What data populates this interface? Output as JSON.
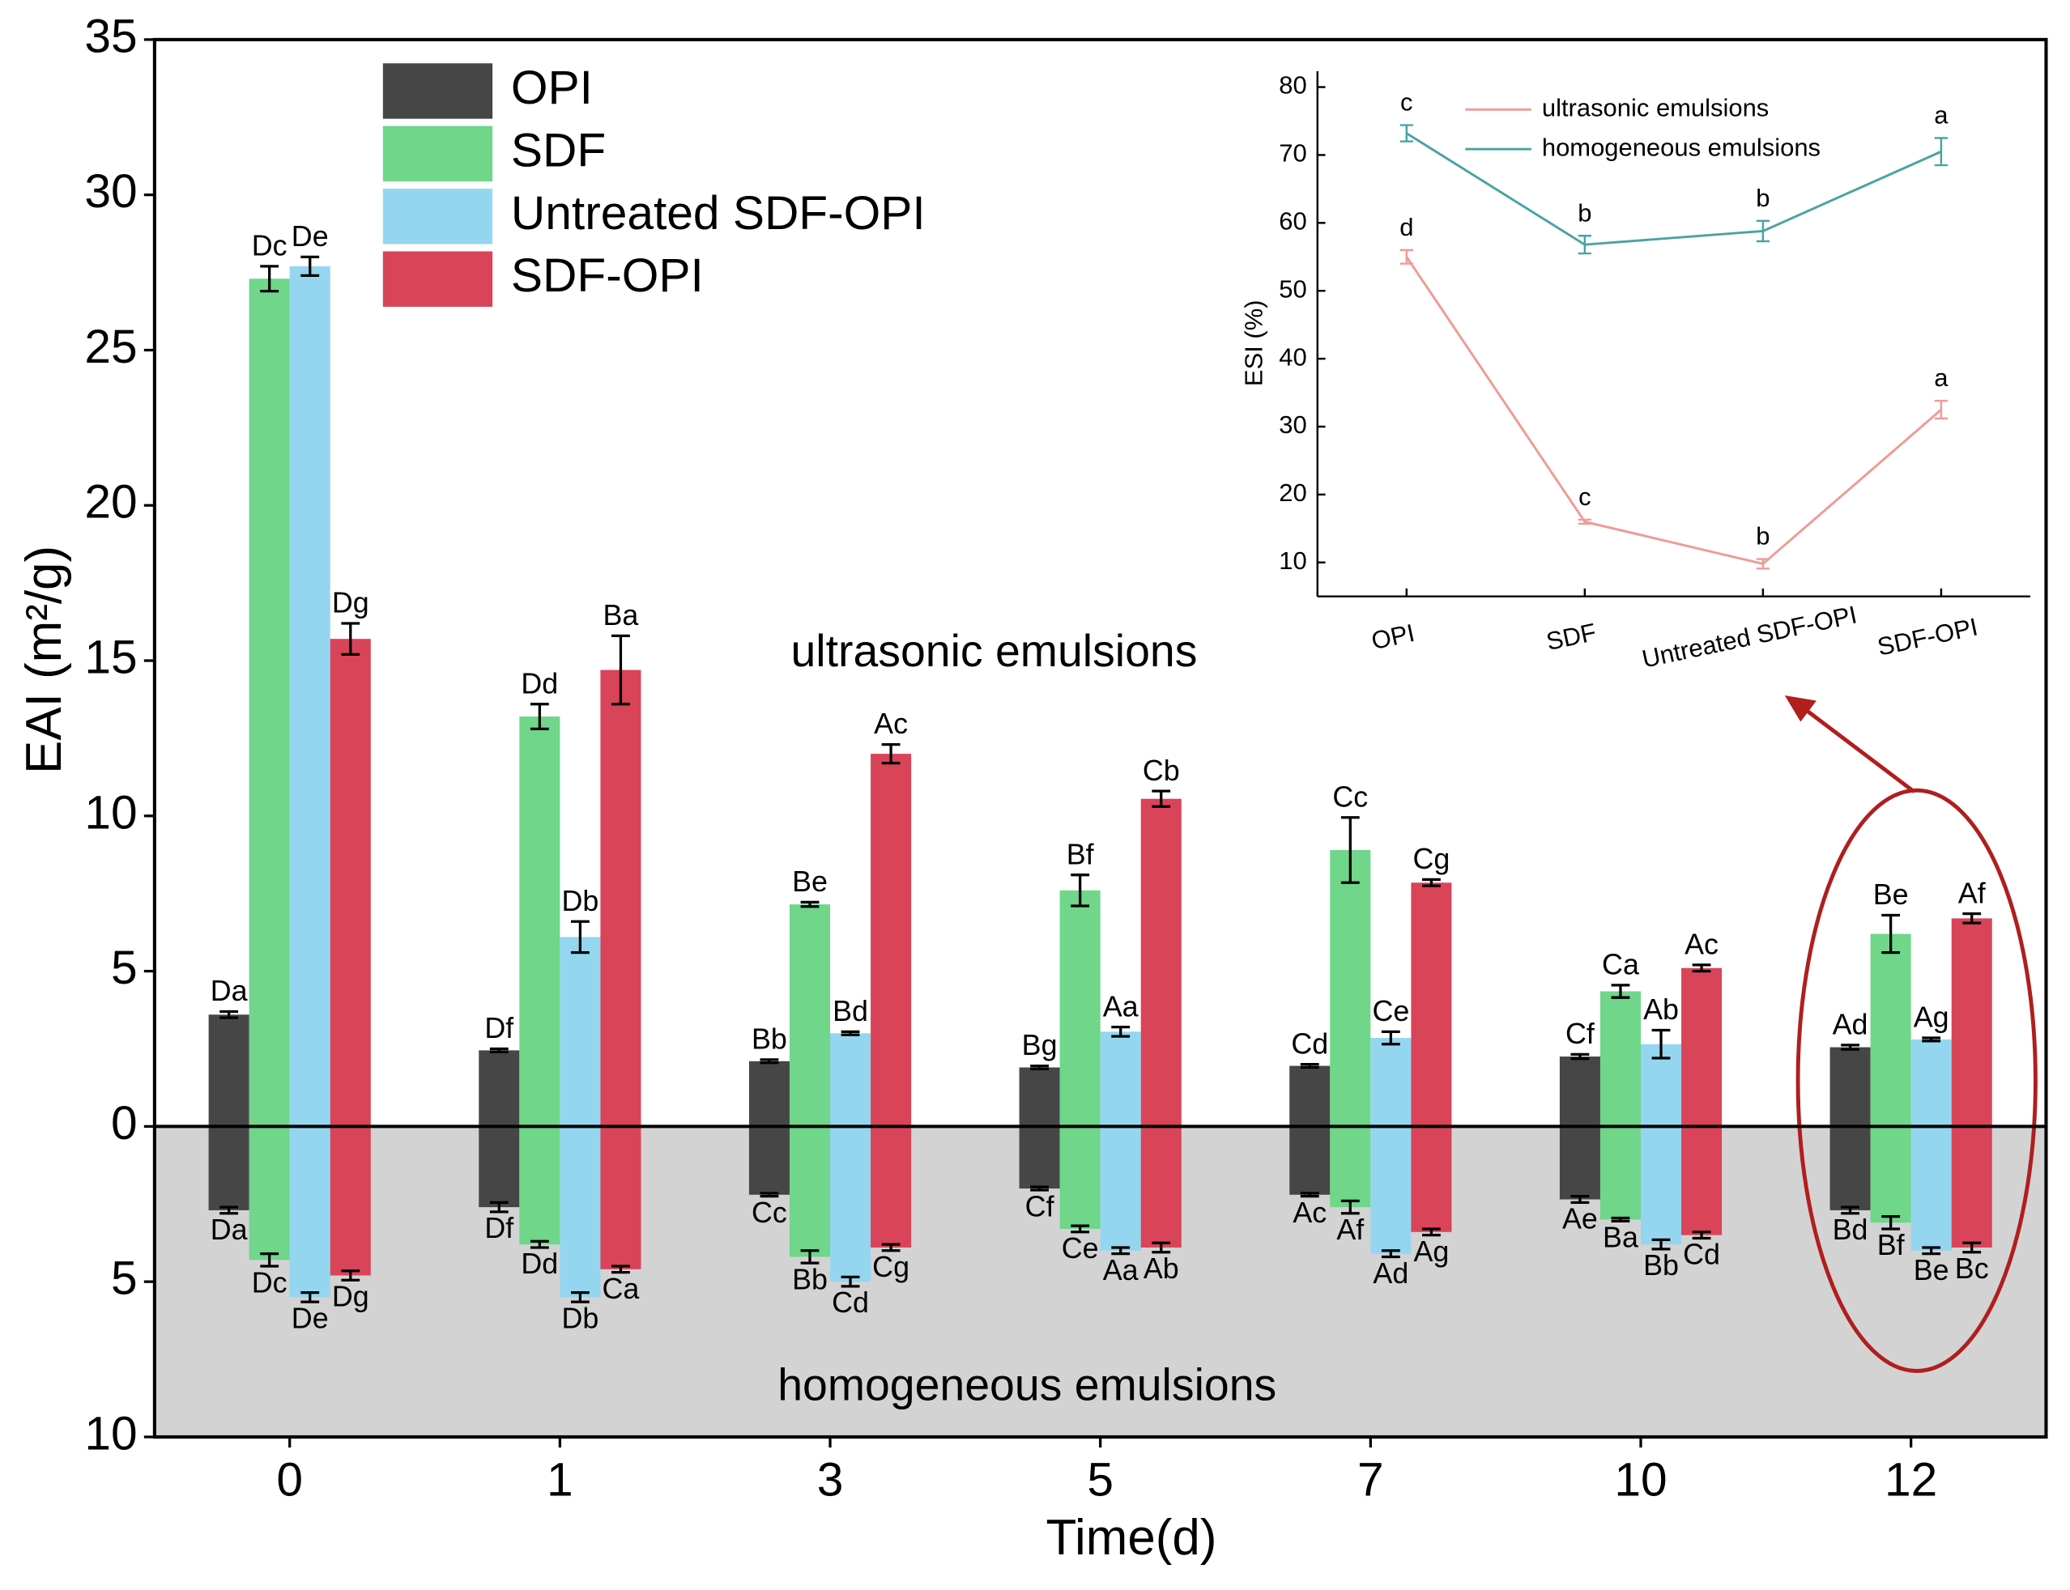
{
  "chart_data": [
    {
      "type": "bar",
      "x_label": "Time(d)",
      "y_label": "EAI (m²/g)",
      "annotations": [
        "ultrasonic emulsions",
        "homogeneous emulsions"
      ],
      "categories": [
        "0",
        "1",
        "3",
        "5",
        "7",
        "10",
        "12"
      ],
      "ylim": [
        -10,
        35
      ],
      "yticks": [
        {
          "value": -10,
          "label": "10"
        },
        {
          "value": -5,
          "label": "5"
        },
        0,
        5,
        10,
        15,
        20,
        25,
        30,
        35
      ],
      "legend": "upper left",
      "series": [
        {
          "name": "OPI",
          "color": "#464646",
          "values": [
            3.6,
            2.45,
            2.1,
            1.9,
            1.95,
            2.25,
            2.55
          ],
          "errors": [
            0.1,
            0.05,
            0.05,
            0.05,
            0.05,
            0.07,
            0.07
          ],
          "letters": [
            "Da",
            "Df",
            "Bb",
            "Bg",
            "Cd",
            "Cf",
            "Ad"
          ],
          "homogeneous_values": [
            -2.7,
            -2.6,
            -2.2,
            -2.0,
            -2.2,
            -2.35,
            -2.7
          ],
          "homogeneous_errors": [
            0.1,
            0.15,
            0.05,
            0.05,
            0.05,
            0.1,
            0.1
          ],
          "homogeneous_letters": [
            "Da",
            "Df",
            "Cc",
            "Cf",
            "Ac",
            "Ae",
            "Bd"
          ]
        },
        {
          "name": "SDF",
          "color": "#6fd68a",
          "values": [
            27.3,
            13.2,
            7.15,
            7.6,
            8.9,
            4.35,
            6.2
          ],
          "errors": [
            0.4,
            0.4,
            0.07,
            0.5,
            1.05,
            0.2,
            0.6
          ],
          "letters": [
            "Dc",
            "Dd",
            "Be",
            "Bf",
            "Cc",
            "Ca",
            "Be"
          ],
          "homogeneous_values": [
            -4.3,
            -3.8,
            -4.2,
            -3.3,
            -2.6,
            -3.0,
            -3.1
          ],
          "homogeneous_errors": [
            0.2,
            0.1,
            0.2,
            0.1,
            0.2,
            0.05,
            0.2
          ],
          "homogeneous_letters": [
            "Dc",
            "Dd",
            "Bb",
            "Ce",
            "Af",
            "Ba",
            "Bf"
          ]
        },
        {
          "name": "Untreated SDF-OPI",
          "color": "#94d6f0",
          "values": [
            27.7,
            6.1,
            3.0,
            3.05,
            2.85,
            2.65,
            2.8
          ],
          "errors": [
            0.3,
            0.5,
            0.05,
            0.15,
            0.2,
            0.45,
            0.05
          ],
          "letters": [
            "De",
            "Db",
            "Bd",
            "Aa",
            "Ce",
            "Ab",
            "Ag"
          ],
          "homogeneous_values": [
            -5.5,
            -5.5,
            -5.0,
            -4.0,
            -4.1,
            -3.8,
            -4.0
          ],
          "homogeneous_errors": [
            0.15,
            0.15,
            0.15,
            0.1,
            0.1,
            0.15,
            0.1
          ],
          "homogeneous_letters": [
            "De",
            "Db",
            "Cd",
            "Aa",
            "Ad",
            "Bb",
            "Be"
          ]
        },
        {
          "name": "SDF-OPI",
          "color": "#d94459",
          "values": [
            15.7,
            14.7,
            12.0,
            10.55,
            7.85,
            5.1,
            6.7
          ],
          "errors": [
            0.5,
            1.1,
            0.3,
            0.25,
            0.1,
            0.1,
            0.15
          ],
          "letters": [
            "Dg",
            "Ba",
            "Ac",
            "Cb",
            "Cg",
            "Ac",
            "Af"
          ],
          "homogeneous_values": [
            -4.8,
            -4.6,
            -3.9,
            -3.9,
            -3.4,
            -3.5,
            -3.9
          ],
          "homogeneous_errors": [
            0.15,
            0.1,
            0.1,
            0.15,
            0.1,
            0.1,
            0.15
          ],
          "homogeneous_letters": [
            "Dg",
            "Ca",
            "Cg",
            "Ab",
            "Ag",
            "Cd",
            "Bc"
          ]
        }
      ]
    },
    {
      "type": "line",
      "y_label": "ESI (%)",
      "categories": [
        "OPI",
        "SDF",
        "Untreated SDF-OPI",
        "SDF-OPI"
      ],
      "ylim": [
        5,
        80
      ],
      "yticks": [
        10,
        20,
        30,
        40,
        50,
        60,
        70,
        80
      ],
      "legend": "upper center",
      "series": [
        {
          "name": "ultrasonic emulsions",
          "color": "#f09a94",
          "values": [
            55,
            16,
            9.8,
            32.5
          ],
          "errors": [
            1,
            0.3,
            0.7,
            1.3
          ],
          "letters": [
            "d",
            "c",
            "b",
            "a"
          ]
        },
        {
          "name": "homogeneous emulsions",
          "color": "#4aa3a3",
          "values": [
            73.2,
            56.8,
            58.8,
            70.5
          ],
          "errors": [
            1.2,
            1.3,
            1.5,
            2
          ],
          "letters": [
            "c",
            "b",
            "b",
            "a"
          ]
        }
      ]
    }
  ]
}
